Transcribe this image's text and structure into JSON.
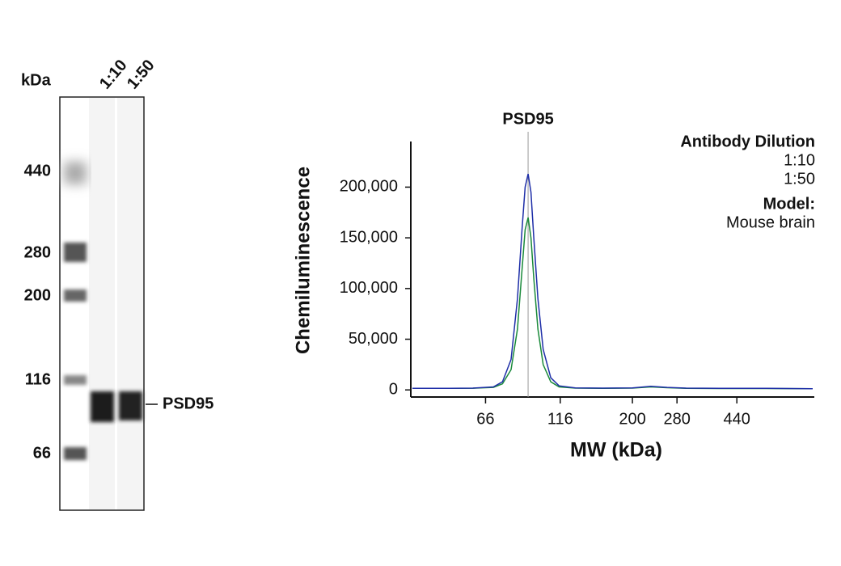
{
  "blot": {
    "unit_label": "kDa",
    "lanes": [
      "1:10",
      "1:50"
    ],
    "ladder": [
      440,
      280,
      200,
      116,
      66
    ],
    "target": "PSD95"
  },
  "chart_data": {
    "type": "line",
    "marker": {
      "label": "PSD95",
      "x": 91
    },
    "x_label": "MW (kDa)",
    "y_label": "Chemiluminescence",
    "legend_title": "Antibody Dilution",
    "model_label": "Model:",
    "model_value": "Mouse brain",
    "x": [
      38,
      50,
      60,
      70,
      75,
      80,
      84,
      87,
      89,
      91,
      93,
      95,
      98,
      102,
      108,
      115,
      130,
      160,
      200,
      230,
      260,
      300,
      400,
      550,
      780
    ],
    "series": [
      {
        "name": "1:10",
        "color": "#1f2fa8",
        "values": [
          1500,
          1500,
          1800,
          3000,
          8000,
          30000,
          90000,
          160000,
          200000,
          213000,
          195000,
          150000,
          90000,
          40000,
          12000,
          4000,
          2000,
          1800,
          2000,
          3500,
          2500,
          1800,
          1500,
          1500,
          1200
        ]
      },
      {
        "name": "1:50",
        "color": "#1a8a3a",
        "values": [
          1500,
          1500,
          1700,
          2500,
          6000,
          20000,
          60000,
          120000,
          158000,
          170000,
          150000,
          110000,
          60000,
          25000,
          8000,
          3000,
          1800,
          1600,
          1800,
          3000,
          2200,
          1600,
          1400,
          1400,
          1100
        ]
      }
    ],
    "xscale": "log",
    "xlim": [
      38,
      780
    ],
    "xticks": [
      66,
      116,
      200,
      280,
      440
    ],
    "ylim": [
      -7000,
      245000
    ],
    "yticks": [
      0,
      {
        "value": 50000,
        "label": "50,000"
      },
      {
        "value": 100000,
        "label": "100,000"
      },
      {
        "value": 150000,
        "label": "150,000"
      },
      {
        "value": 200000,
        "label": "200,000"
      }
    ]
  }
}
